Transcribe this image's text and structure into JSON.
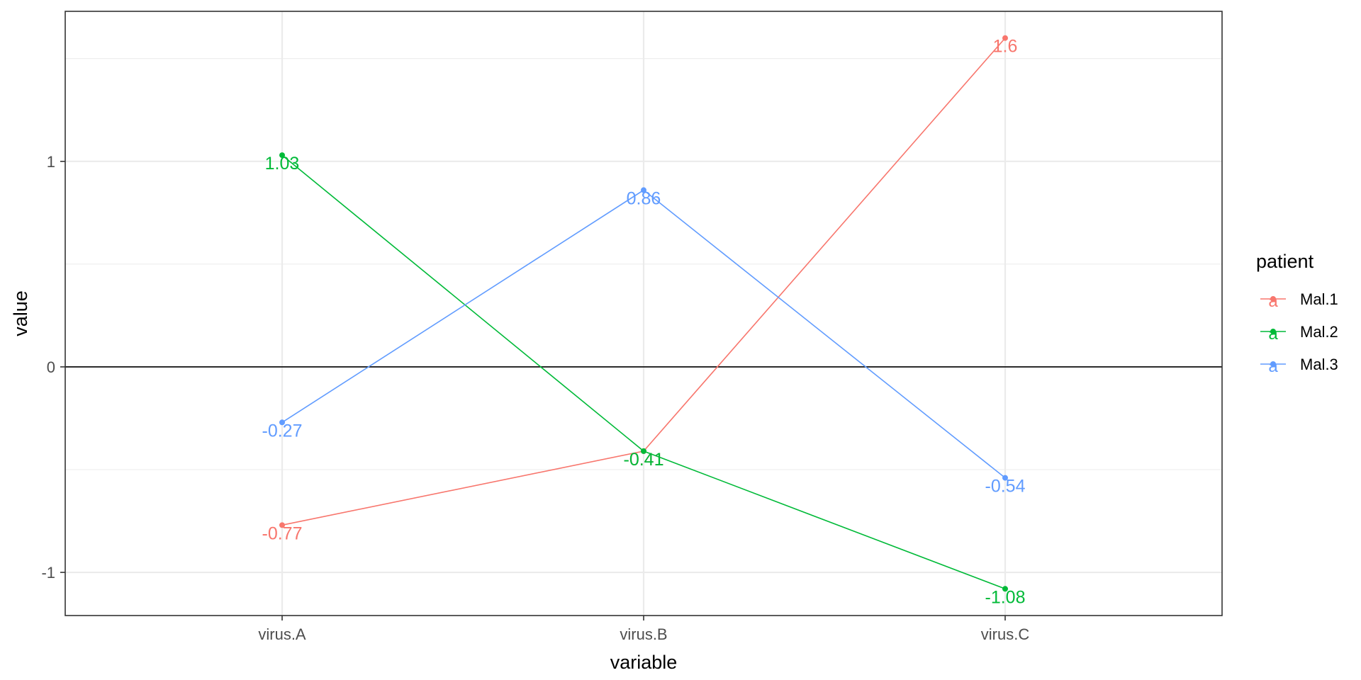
{
  "chart_data": {
    "type": "line",
    "title": "",
    "xlabel": "variable",
    "ylabel": "value",
    "categories": [
      "virus.A",
      "virus.B",
      "virus.C"
    ],
    "ylim": [
      -1.21,
      1.73
    ],
    "yticks": [
      -1,
      0,
      1
    ],
    "grid": true,
    "hline": 0,
    "legend": {
      "title": "patient",
      "position": "right",
      "key_glyph": "a"
    },
    "series": [
      {
        "name": "Mal.1",
        "color": "#F8766D",
        "values": [
          -0.77,
          -0.41,
          1.6
        ],
        "labels": [
          "-0.77",
          "-0.41",
          "1.6"
        ]
      },
      {
        "name": "Mal.2",
        "color": "#00BA38",
        "values": [
          1.03,
          -0.41,
          -1.08
        ],
        "labels": [
          "1.03",
          "-0.41",
          "-1.08"
        ]
      },
      {
        "name": "Mal.3",
        "color": "#619CFF",
        "values": [
          -0.27,
          0.86,
          -0.54
        ],
        "labels": [
          "-0.27",
          "0.86",
          "-0.54"
        ]
      }
    ]
  }
}
